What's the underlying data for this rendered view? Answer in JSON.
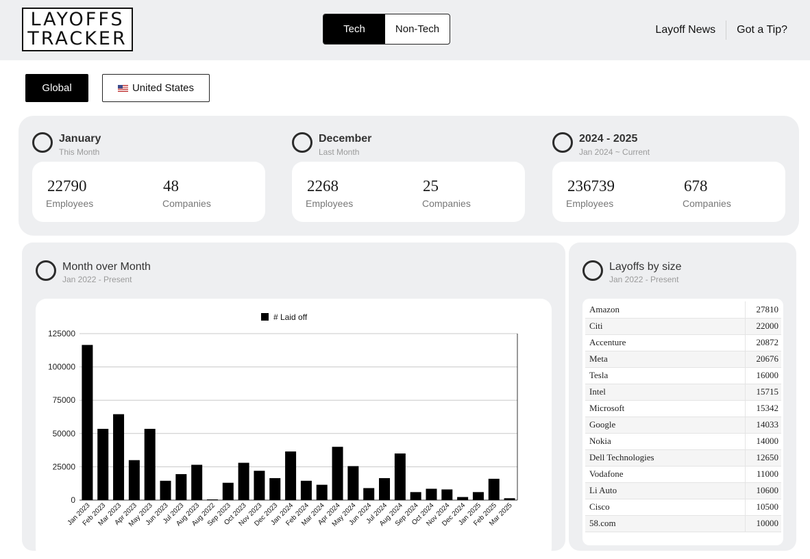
{
  "header": {
    "logo_line1": "LAYOFFS",
    "logo_line2": "TRACKER",
    "toggle": {
      "tech": "Tech",
      "nontech": "Non-Tech",
      "active": "Tech"
    },
    "links": {
      "news": "Layoff News",
      "tip": "Got a Tip?"
    }
  },
  "region": {
    "global": "Global",
    "us": "United States",
    "active": "Global"
  },
  "stats": [
    {
      "title": "January",
      "subtitle": "This Month",
      "employees": "22790",
      "companies": "48",
      "employees_label": "Employees",
      "companies_label": "Companies"
    },
    {
      "title": "December",
      "subtitle": "Last Month",
      "employees": "2268",
      "companies": "25",
      "employees_label": "Employees",
      "companies_label": "Companies"
    },
    {
      "title": "2024 - 2025",
      "subtitle": "Jan 2024 ~ Current",
      "employees": "236739",
      "companies": "678",
      "employees_label": "Employees",
      "companies_label": "Companies"
    }
  ],
  "mom": {
    "title": "Month over Month",
    "subtitle": "Jan 2022 - Present"
  },
  "chart_data": {
    "type": "bar",
    "legend": "# Laid off",
    "legend_position": "top-center",
    "grid": true,
    "ylim": [
      0,
      125000
    ],
    "yticks": [
      "0",
      "25000",
      "50000",
      "75000",
      "100000",
      "125000"
    ],
    "categories": [
      "Jan 2023",
      "Feb 2023",
      "Mar 2023",
      "Apr 2023",
      "May 2023",
      "Jun 2023",
      "Jul 2023",
      "Aug 2023",
      "Aug 2022",
      "Sep 2023",
      "Oct 2023",
      "Nov 2023",
      "Dec 2023",
      "Jan 2024",
      "Feb 2024",
      "Mar 2024",
      "Apr 2024",
      "May 2024",
      "Jun 2024",
      "Jul 2024",
      "Aug 2024",
      "Sep 2024",
      "Oct 2024",
      "Nov 2024",
      "Dec 2024",
      "Jan 2025",
      "Feb 2025",
      "Mar 2025"
    ],
    "series": [
      {
        "name": "# Laid off",
        "color": "#000000",
        "values": [
          116500,
          53500,
          64500,
          30000,
          53500,
          14500,
          19500,
          26500,
          500,
          13000,
          28000,
          22000,
          16500,
          36500,
          14500,
          11500,
          40000,
          25500,
          9000,
          16500,
          35000,
          6000,
          8500,
          8000,
          2300,
          6000,
          16000,
          1400
        ]
      }
    ]
  },
  "bysize": {
    "title": "Layoffs by size",
    "subtitle": "Jan 2022 - Present",
    "rows": [
      {
        "company": "Amazon",
        "count": "27810"
      },
      {
        "company": "Citi",
        "count": "22000"
      },
      {
        "company": "Accenture",
        "count": "20872"
      },
      {
        "company": "Meta",
        "count": "20676"
      },
      {
        "company": "Tesla",
        "count": "16000"
      },
      {
        "company": "Intel",
        "count": "15715"
      },
      {
        "company": "Microsoft",
        "count": "15342"
      },
      {
        "company": "Google",
        "count": "14033"
      },
      {
        "company": "Nokia",
        "count": "14000"
      },
      {
        "company": "Dell Technologies",
        "count": "12650"
      },
      {
        "company": "Vodafone",
        "count": "11000"
      },
      {
        "company": "Li Auto",
        "count": "10600"
      },
      {
        "company": "Cisco",
        "count": "10500"
      },
      {
        "company": "58.com",
        "count": "10000"
      }
    ]
  }
}
